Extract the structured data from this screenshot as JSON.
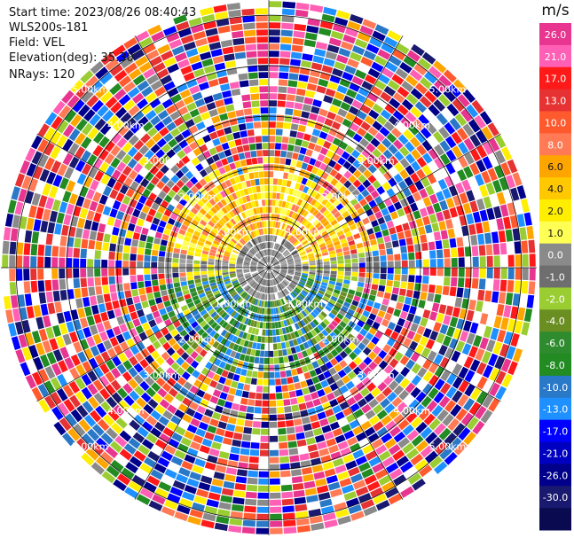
{
  "header": {
    "start_time": "Start time: 2023/08/26 08:40:43",
    "instrument": "WLS200s-181",
    "field": "Field: VEL",
    "elevation": "Elevation(deg): 35.30",
    "nrays": "NRays: 120"
  },
  "colorbar": {
    "unit": "m/s",
    "ticks": [
      "26.0",
      "21.0",
      "17.0",
      "13.0",
      "10.0",
      "8.0",
      "6.0",
      "4.0",
      "2.0",
      "1.0",
      "0.0",
      "-1.0",
      "-2.0",
      "-4.0",
      "-6.0",
      "-8.0",
      "-10.0",
      "-13.0",
      "-17.0",
      "-21.0",
      "-26.0",
      "-30.0"
    ],
    "colors": [
      "#e8358f",
      "#ff5fb4",
      "#ff1a1a",
      "#e63232",
      "#ff5a2e",
      "#ff7a55",
      "#ffa500",
      "#ffc800",
      "#ffee00",
      "#ffff55",
      "#8a8a8a",
      "#6e6e6e",
      "#9acd32",
      "#6b8e23",
      "#2e8b2e",
      "#228b22",
      "#2a78c8",
      "#1e90ff",
      "#0000ff",
      "#0000c0",
      "#00008b",
      "#191970",
      "#0a0a50"
    ]
  },
  "chart_data": {
    "type": "heatmap",
    "title": "",
    "plot": "PPI radial velocity scan (polar)",
    "range_rings_km": [
      "1.00km",
      "2.00km",
      "3.00km",
      "4.00km",
      "5.00km"
    ],
    "nrays": 120,
    "elevation_deg": 35.3,
    "field": "VEL",
    "unit": "m/s",
    "vmin": -30.0,
    "vmax": 26.0,
    "pattern": {
      "near_range_north_sector": "positive 1.0–6.0 m/s (yellow/orange)",
      "near_range_south_sector": "negative -2.0 to -10.0 m/s (green/blue)",
      "far_range": "noise (all colors)"
    }
  }
}
